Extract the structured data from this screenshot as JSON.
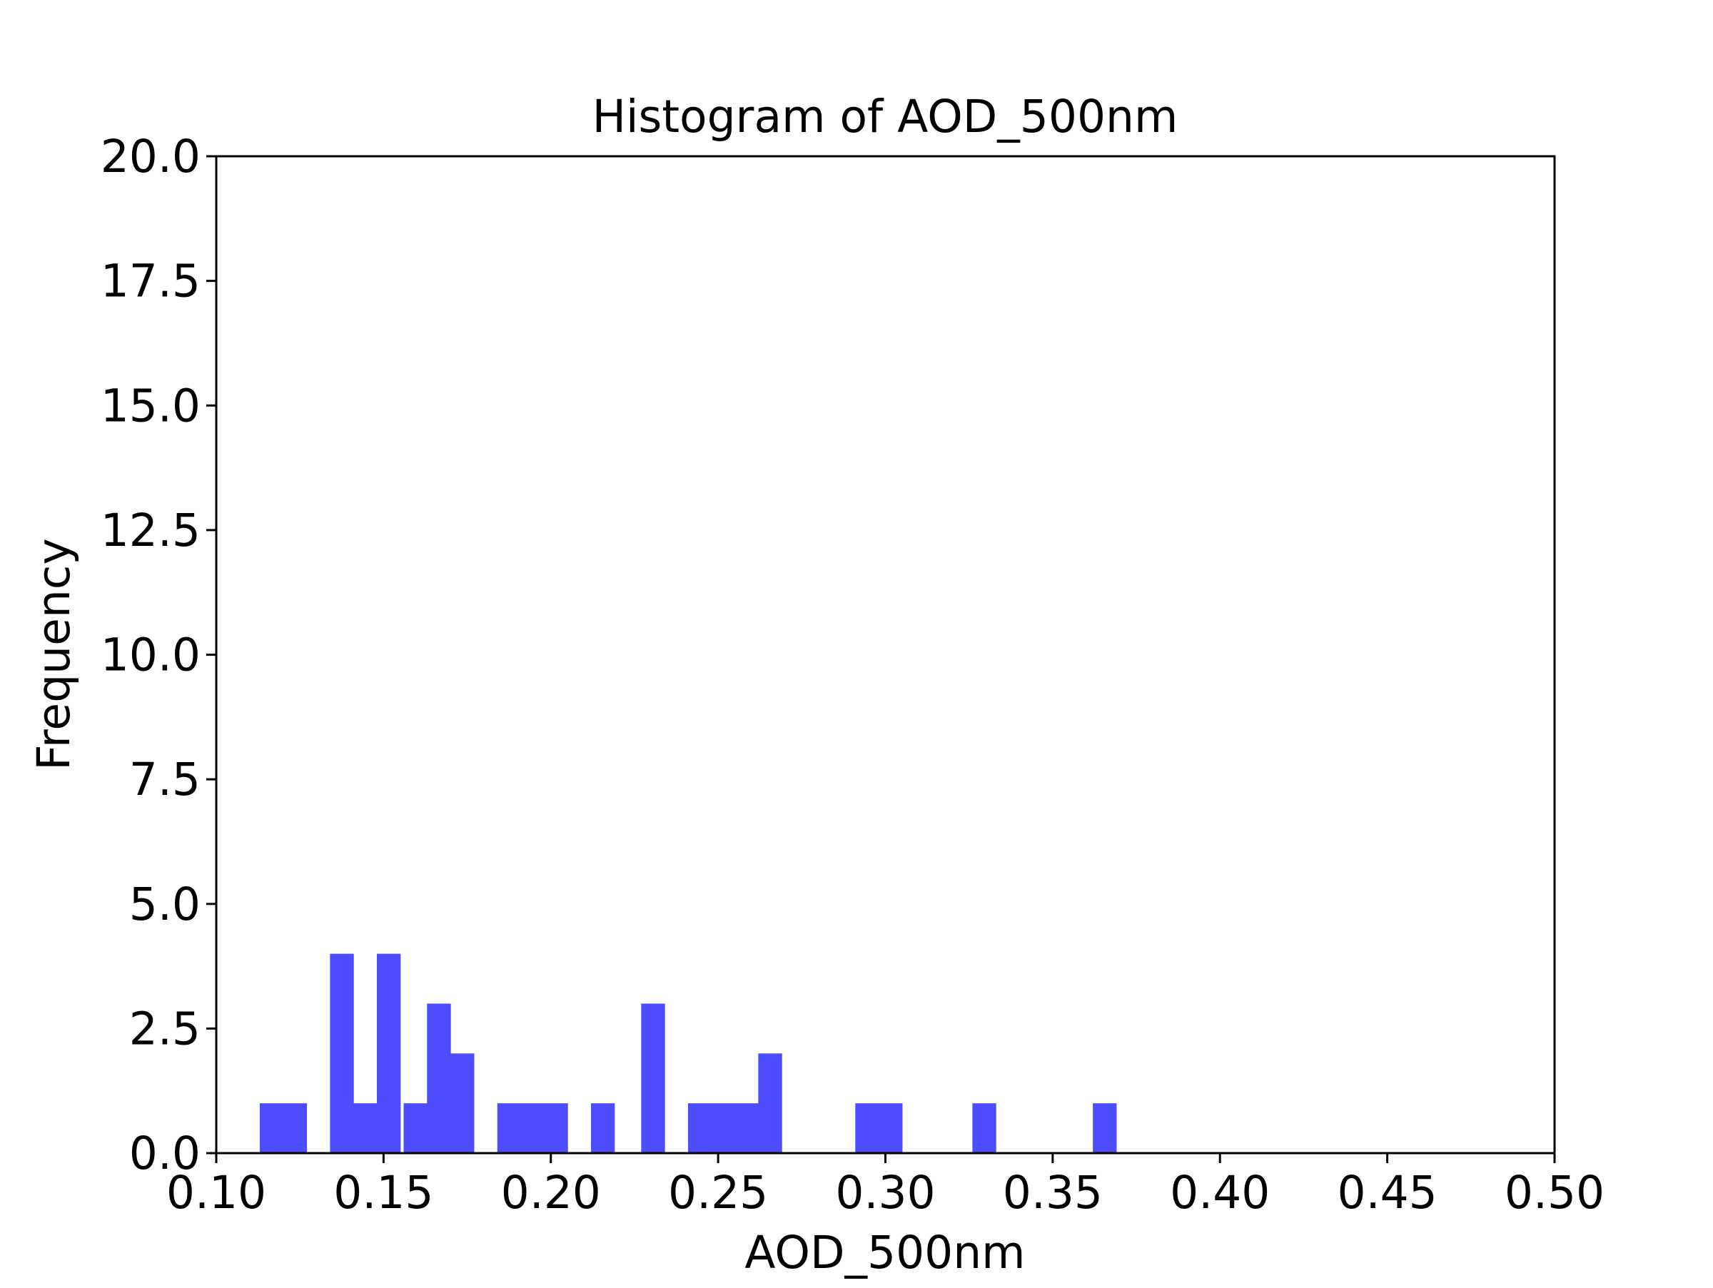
{
  "chart_data": {
    "type": "bar",
    "title": "Histogram of AOD_500nm",
    "xlabel": "AOD_500nm",
    "ylabel": "Frequency",
    "xlim": [
      0.1,
      0.5
    ],
    "ylim": [
      0,
      20
    ],
    "xticks": [
      "0.10",
      "0.15",
      "0.20",
      "0.25",
      "0.30",
      "0.35",
      "0.40",
      "0.45",
      "0.50"
    ],
    "yticks": [
      "0.0",
      "2.5",
      "5.0",
      "7.5",
      "10.0",
      "12.5",
      "15.0",
      "17.5",
      "20.0"
    ],
    "bar_color": "#4d4dff",
    "grid": false,
    "bin_width": 0.00711,
    "series": [
      {
        "values": [
          {
            "x0": 0.113,
            "count": 1
          },
          {
            "x0": 0.12,
            "count": 1
          },
          {
            "x0": 0.134,
            "count": 4
          },
          {
            "x0": 0.141,
            "count": 1
          },
          {
            "x0": 0.148,
            "count": 4
          },
          {
            "x0": 0.156,
            "count": 1
          },
          {
            "x0": 0.163,
            "count": 3
          },
          {
            "x0": 0.17,
            "count": 2
          },
          {
            "x0": 0.184,
            "count": 1
          },
          {
            "x0": 0.191,
            "count": 1
          },
          {
            "x0": 0.198,
            "count": 1
          },
          {
            "x0": 0.212,
            "count": 1
          },
          {
            "x0": 0.227,
            "count": 3
          },
          {
            "x0": 0.241,
            "count": 1
          },
          {
            "x0": 0.248,
            "count": 1
          },
          {
            "x0": 0.255,
            "count": 1
          },
          {
            "x0": 0.262,
            "count": 2
          },
          {
            "x0": 0.291,
            "count": 1
          },
          {
            "x0": 0.298,
            "count": 1
          },
          {
            "x0": 0.326,
            "count": 1
          },
          {
            "x0": 0.362,
            "count": 1
          }
        ]
      }
    ]
  }
}
